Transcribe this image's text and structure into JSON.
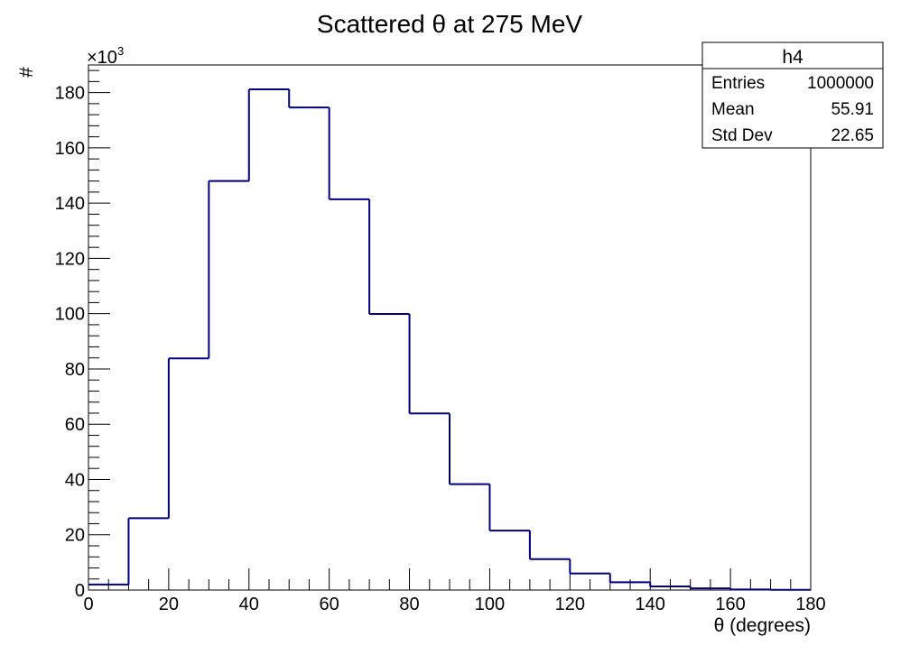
{
  "chart_data": {
    "type": "bar",
    "title": "Scattered θ at 275 MeV",
    "xlabel": "θ (degrees)",
    "ylabel": "#",
    "y_multiplier": "×10",
    "y_multiplier_exponent": "3",
    "bin_edges": [
      0,
      10,
      20,
      30,
      40,
      50,
      60,
      70,
      80,
      90,
      100,
      110,
      120,
      130,
      140,
      150,
      160,
      170,
      180
    ],
    "values": [
      2000,
      26000,
      83800,
      148000,
      181200,
      174600,
      141400,
      99900,
      63900,
      38300,
      21500,
      11200,
      6000,
      2800,
      1300,
      600,
      200,
      100
    ],
    "xlim": [
      0,
      180
    ],
    "ylim": [
      0,
      190000
    ],
    "x_ticks": [
      "0",
      "20",
      "40",
      "60",
      "80",
      "100",
      "120",
      "140",
      "160",
      "180"
    ],
    "y_ticks": [
      "0",
      "20",
      "40",
      "60",
      "80",
      "100",
      "120",
      "140",
      "160",
      "180"
    ],
    "grid": false,
    "line_color": "#000080",
    "stats_box": {
      "name": "h4",
      "rows": [
        {
          "label": "Entries",
          "value": "1000000"
        },
        {
          "label": "Mean",
          "value": "55.91"
        },
        {
          "label": "Std Dev",
          "value": "22.65"
        }
      ]
    }
  }
}
